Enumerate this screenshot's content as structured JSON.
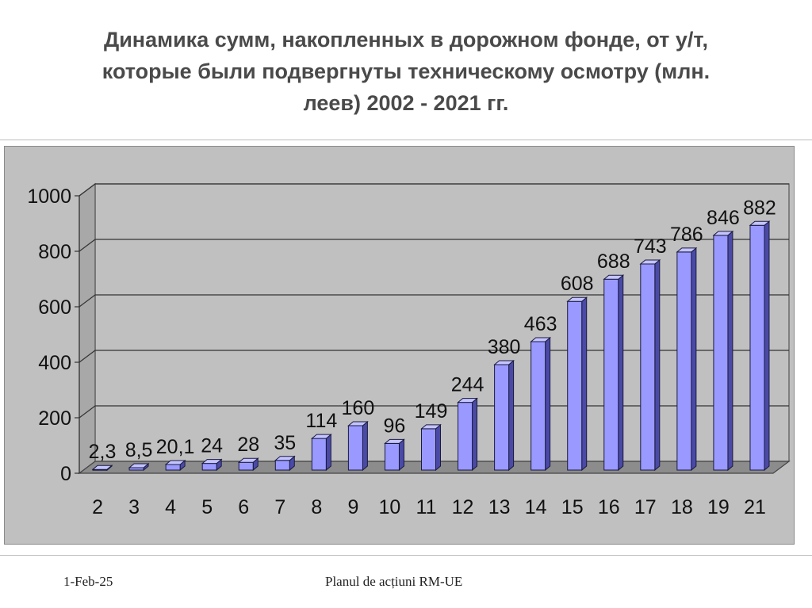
{
  "slide": {
    "title_lines": [
      "Динамика сумм, накопленных в дорожном фонде, от у/т,",
      "которые были подвергнуты техническому осмотру (млн.",
      "леев) 2002 - 2021 гг."
    ],
    "footer_date": "1-Feb-25",
    "footer_center": "Planul de acțiuni RM-UE"
  },
  "chart_data": {
    "type": "bar",
    "title": "Динамика сумм, накопленных в дорожном фонде, от у/т, которые были подвергнуты техническому осмотру (млн. леев) 2002 - 2021 гг.",
    "xlabel": "",
    "ylabel": "",
    "categories": [
      "2",
      "3",
      "4",
      "5",
      "6",
      "7",
      "8",
      "9",
      "10",
      "11",
      "12",
      "13",
      "14",
      "15",
      "16",
      "17",
      "18",
      "19",
      "21"
    ],
    "values": [
      2.3,
      8.5,
      20.1,
      24,
      28,
      35,
      114,
      160,
      96,
      149,
      244,
      380,
      463,
      608,
      688,
      743,
      786,
      846,
      882
    ],
    "data_labels": [
      "2,3",
      "8,5",
      "20,1",
      "24",
      "28",
      "35",
      "114",
      "160",
      "96",
      "149",
      "244",
      "380",
      "463",
      "608",
      "688",
      "743",
      "786",
      "846",
      "882"
    ],
    "ylim": [
      0,
      1000
    ],
    "yticks": [
      0,
      200,
      400,
      600,
      800,
      1000
    ],
    "ytick_labels": [
      "0",
      "200",
      "400",
      "600",
      "800",
      "1000"
    ],
    "grid": true,
    "legend": "none",
    "bar_color": "#9999ff",
    "background_color": "#c0c0c0"
  }
}
